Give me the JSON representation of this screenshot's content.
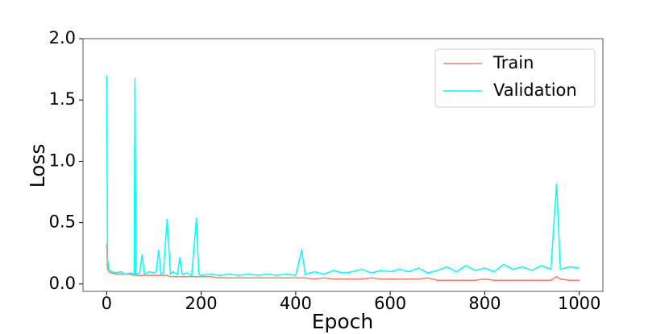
{
  "chart_data": {
    "type": "line",
    "xlabel": "Epoch",
    "ylabel": "Loss",
    "x": [
      0,
      2,
      5,
      10,
      20,
      30,
      40,
      50,
      58,
      60,
      62,
      70,
      75,
      80,
      90,
      100,
      105,
      110,
      115,
      120,
      128,
      135,
      140,
      150,
      155,
      160,
      170,
      180,
      190,
      195,
      200,
      220,
      240,
      260,
      280,
      300,
      320,
      340,
      360,
      380,
      400,
      413,
      420,
      440,
      460,
      480,
      500,
      520,
      540,
      560,
      580,
      600,
      620,
      640,
      660,
      680,
      700,
      720,
      740,
      760,
      780,
      800,
      820,
      840,
      860,
      880,
      900,
      920,
      940,
      952,
      960,
      980,
      1000
    ],
    "series": [
      {
        "name": "Train",
        "color": "#fa8060",
        "values": [
          0.33,
          0.12,
          0.1,
          0.09,
          0.08,
          0.08,
          0.08,
          0.08,
          0.07,
          0.08,
          0.07,
          0.07,
          0.07,
          0.07,
          0.07,
          0.07,
          0.07,
          0.07,
          0.07,
          0.07,
          0.07,
          0.06,
          0.06,
          0.06,
          0.06,
          0.06,
          0.06,
          0.06,
          0.06,
          0.06,
          0.06,
          0.06,
          0.05,
          0.05,
          0.05,
          0.05,
          0.05,
          0.05,
          0.05,
          0.05,
          0.05,
          0.05,
          0.05,
          0.04,
          0.05,
          0.04,
          0.04,
          0.04,
          0.04,
          0.05,
          0.04,
          0.04,
          0.04,
          0.04,
          0.04,
          0.05,
          0.03,
          0.03,
          0.03,
          0.03,
          0.03,
          0.04,
          0.03,
          0.03,
          0.03,
          0.03,
          0.03,
          0.03,
          0.03,
          0.06,
          0.04,
          0.03,
          0.03
        ]
      },
      {
        "name": "Validation",
        "color": "#00ffff",
        "values": [
          1.7,
          0.2,
          0.12,
          0.1,
          0.09,
          0.1,
          0.08,
          0.09,
          0.08,
          1.68,
          0.08,
          0.09,
          0.24,
          0.08,
          0.1,
          0.09,
          0.1,
          0.28,
          0.08,
          0.09,
          0.53,
          0.08,
          0.1,
          0.08,
          0.22,
          0.08,
          0.09,
          0.07,
          0.54,
          0.08,
          0.07,
          0.08,
          0.07,
          0.08,
          0.07,
          0.08,
          0.07,
          0.08,
          0.07,
          0.08,
          0.07,
          0.28,
          0.08,
          0.1,
          0.08,
          0.11,
          0.09,
          0.1,
          0.12,
          0.09,
          0.11,
          0.1,
          0.12,
          0.1,
          0.13,
          0.09,
          0.11,
          0.14,
          0.1,
          0.15,
          0.11,
          0.13,
          0.1,
          0.16,
          0.12,
          0.14,
          0.11,
          0.15,
          0.12,
          0.82,
          0.12,
          0.14,
          0.13
        ]
      }
    ],
    "xlim": [
      -50,
      1050
    ],
    "xticks": [
      0,
      200,
      400,
      600,
      800,
      1000
    ],
    "ylim": [
      -0.06,
      2.0
    ],
    "yticks": [
      {
        "value": 0,
        "label": "0.0"
      },
      0.5,
      {
        "value": 1,
        "label": "1.0"
      },
      1.5,
      {
        "value": 2,
        "label": "2.0"
      }
    ],
    "legend": "upper right"
  }
}
